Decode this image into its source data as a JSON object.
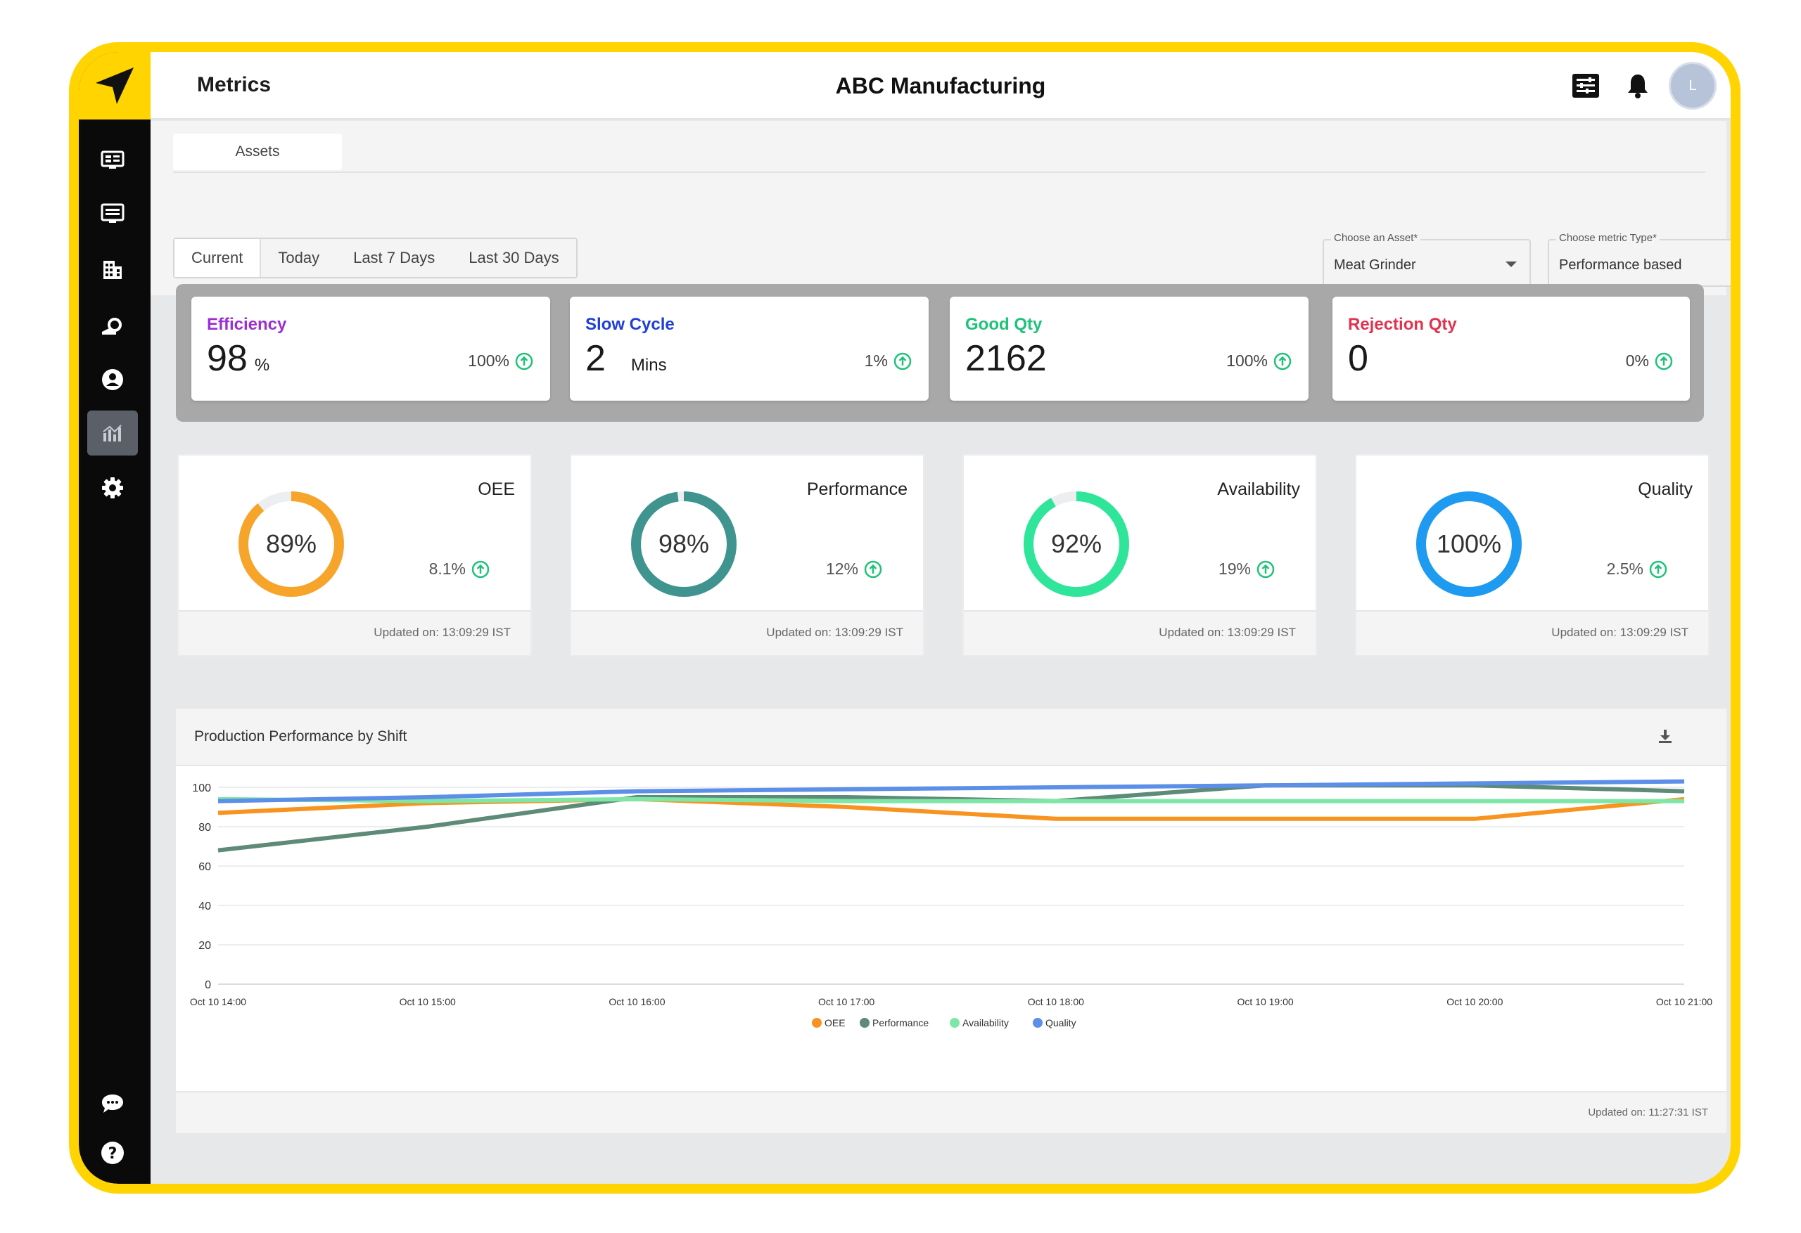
{
  "header": {
    "page_title": "Metrics",
    "org_name": "ABC Manufacturing",
    "avatar_initial": "L"
  },
  "sidebar": {
    "items": [
      {
        "icon": "dashboard-icon"
      },
      {
        "icon": "list-icon"
      },
      {
        "icon": "building-icon"
      },
      {
        "icon": "machine-icon"
      },
      {
        "icon": "user-icon"
      },
      {
        "icon": "analytics-icon",
        "active": true
      },
      {
        "icon": "gear-icon"
      }
    ],
    "bottom_items": [
      {
        "icon": "chat-icon"
      },
      {
        "icon": "help-icon"
      }
    ]
  },
  "tabs": {
    "assets": "Assets"
  },
  "time_range": {
    "options": [
      "Current",
      "Today",
      "Last 7 Days",
      "Last 30 Days"
    ],
    "selected": "Current"
  },
  "filters": {
    "asset": {
      "label": "Choose an Asset*",
      "value": "Meat Grinder"
    },
    "metric_type": {
      "label": "Choose metric Type*",
      "value": "Performance based"
    }
  },
  "kpis": [
    {
      "label": "Efficiency",
      "value": "98",
      "unit": "%",
      "trend": "100%",
      "color": "#9b2fd1"
    },
    {
      "label": "Slow Cycle",
      "value": "2",
      "unit": "Mins",
      "trend": "1%",
      "color": "#1f3fd6"
    },
    {
      "label": "Good Qty",
      "value": "2162",
      "unit": "",
      "trend": "100%",
      "color": "#1fc27a"
    },
    {
      "label": "Rejection Qty",
      "value": "0",
      "unit": "",
      "trend": "0%",
      "color": "#e0334f"
    }
  ],
  "gauges": [
    {
      "title": "OEE",
      "percent": 89,
      "display": "89%",
      "trend": "8.1%",
      "updated": "Updated on: 13:09:29 IST",
      "color": "#f7a42a"
    },
    {
      "title": "Performance",
      "percent": 98,
      "display": "98%",
      "trend": "12%",
      "updated": "Updated on: 13:09:29 IST",
      "color": "#3f9490"
    },
    {
      "title": "Availability",
      "percent": 92,
      "display": "92%",
      "trend": "19%",
      "updated": "Updated on: 13:09:29 IST",
      "color": "#2ee59a"
    },
    {
      "title": "Quality",
      "percent": 100,
      "display": "100%",
      "trend": "2.5%",
      "updated": "Updated on: 13:09:29 IST",
      "color": "#1e9bf0"
    }
  ],
  "trend_color": "#1fc27a",
  "chart": {
    "title": "Production Performance by Shift",
    "updated": "Updated on: 11:27:31 IST"
  },
  "chart_data": {
    "type": "line",
    "x": [
      "Oct 10 14:00",
      "Oct 10 15:00",
      "Oct 10 16:00",
      "Oct 10 17:00",
      "Oct 10 18:00",
      "Oct 10 19:00",
      "Oct 10 20:00",
      "Oct 10 21:00"
    ],
    "series": [
      {
        "name": "OEE",
        "color": "#f7931e",
        "values": [
          87,
          92,
          94,
          90,
          84,
          84,
          84,
          94
        ]
      },
      {
        "name": "Performance",
        "color": "#5e8a78",
        "values": [
          68,
          80,
          95,
          95,
          93,
          101,
          101,
          98
        ]
      },
      {
        "name": "Availability",
        "color": "#7ee6a6",
        "values": [
          94,
          93,
          94,
          93,
          93,
          93,
          93,
          93
        ]
      },
      {
        "name": "Quality",
        "color": "#5b8fe8",
        "values": [
          93,
          95,
          98,
          99,
          100,
          101,
          102,
          103
        ]
      }
    ],
    "y_ticks": [
      0,
      20,
      40,
      60,
      80,
      100
    ],
    "ylim": [
      0,
      100
    ],
    "grid": true,
    "legend": "bottom"
  }
}
